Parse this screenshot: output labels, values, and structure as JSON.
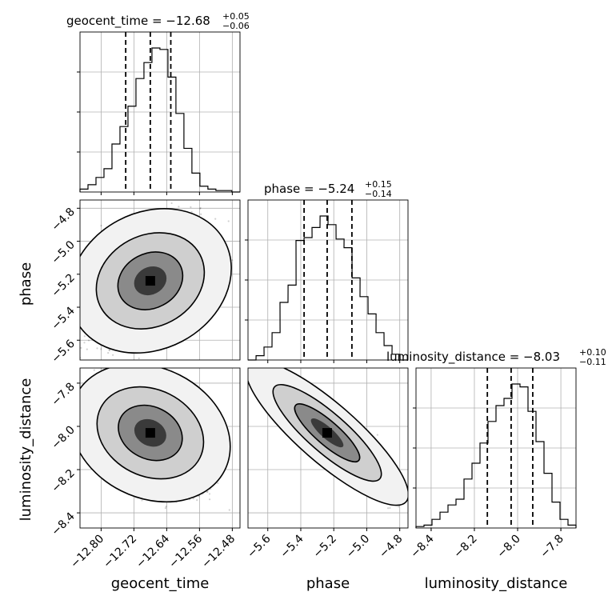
{
  "chart_data": {
    "type": "corner",
    "parameters": [
      {
        "name": "geocent_time",
        "title": {
          "prefix": "geocent_time = −12.68",
          "sup": "+0.05",
          "sub": "−0.06"
        },
        "range": [
          -12.8515,
          -12.4612
        ],
        "ticks": [
          -12.8,
          -12.72,
          -12.64,
          -12.56,
          -12.48
        ],
        "tick_labels": [
          "−12.80",
          "−12.72",
          "−12.64",
          "−12.56",
          "−12.48"
        ],
        "quantiles": [
          -12.74,
          -12.68,
          -12.63
        ],
        "hist_bins": [
          [
            -12.8515,
            2
          ],
          [
            -12.832,
            5
          ],
          [
            -12.8125,
            10
          ],
          [
            -12.793,
            16
          ],
          [
            -12.7735,
            33
          ],
          [
            -12.754,
            45
          ],
          [
            -12.7345,
            59
          ],
          [
            -12.715,
            78
          ],
          [
            -12.6955,
            89
          ],
          [
            -12.676,
            99
          ],
          [
            -12.6565,
            98
          ],
          [
            -12.637,
            79
          ],
          [
            -12.6175,
            54
          ],
          [
            -12.598,
            30
          ],
          [
            -12.5785,
            13
          ],
          [
            -12.559,
            4
          ],
          [
            -12.5395,
            2
          ],
          [
            -12.52,
            1
          ],
          [
            -12.5005,
            1
          ],
          [
            -12.481,
            0
          ]
        ]
      },
      {
        "name": "phase",
        "title": {
          "prefix": "phase = −5.24",
          "sup": "+0.15",
          "sub": "−0.14"
        },
        "range": [
          -5.72,
          -4.75
        ],
        "ticks": [
          -5.6,
          -5.4,
          -5.2,
          -5.0,
          -4.8
        ],
        "tick_labels": [
          "−5.6",
          "−5.4",
          "−5.2",
          "−5.0",
          "−4.8"
        ],
        "y_ticks": [
          -4.8,
          -5.0,
          -5.2,
          -5.4,
          -5.6
        ],
        "y_tick_labels": [
          "−4.8",
          "−5.0",
          "−5.2",
          "−5.4",
          "−5.6"
        ],
        "quantiles": [
          -5.38,
          -5.24,
          -5.09
        ],
        "hist_bins": [
          [
            -5.72,
            0
          ],
          [
            -5.671,
            3
          ],
          [
            -5.623,
            9
          ],
          [
            -5.574,
            19
          ],
          [
            -5.526,
            40
          ],
          [
            -5.477,
            52
          ],
          [
            -5.429,
            83
          ],
          [
            -5.38,
            85
          ],
          [
            -5.332,
            92
          ],
          [
            -5.283,
            100
          ],
          [
            -5.235,
            94
          ],
          [
            -5.186,
            84
          ],
          [
            -5.138,
            78
          ],
          [
            -5.089,
            57
          ],
          [
            -5.041,
            44
          ],
          [
            -4.992,
            32
          ],
          [
            -4.944,
            19
          ],
          [
            -4.895,
            10
          ],
          [
            -4.847,
            4
          ],
          [
            -4.798,
            0
          ]
        ]
      },
      {
        "name": "luminosity_distance",
        "title": {
          "prefix": "luminosity_distance = −8.03",
          "sup": "+0.10",
          "sub": "−0.11"
        },
        "range": [
          -8.47,
          -7.73
        ],
        "ticks": [
          -8.4,
          -8.2,
          -8.0,
          -7.8
        ],
        "tick_labels": [
          "−8.4",
          "−8.2",
          "−8.0",
          "−7.8"
        ],
        "y_ticks": [
          -7.8,
          -8.0,
          -8.2,
          -8.4
        ],
        "y_tick_labels": [
          "−7.8",
          "−8.0",
          "−8.2",
          "−8.4"
        ],
        "quantiles": [
          -8.14,
          -8.03,
          -7.93
        ],
        "hist_bins": [
          [
            -8.47,
            1
          ],
          [
            -8.433,
            2
          ],
          [
            -8.396,
            6
          ],
          [
            -8.359,
            11
          ],
          [
            -8.322,
            16
          ],
          [
            -8.285,
            20
          ],
          [
            -8.248,
            34
          ],
          [
            -8.211,
            45
          ],
          [
            -8.174,
            59
          ],
          [
            -8.137,
            74
          ],
          [
            -8.1,
            85
          ],
          [
            -8.063,
            90
          ],
          [
            -8.026,
            100
          ],
          [
            -7.989,
            98
          ],
          [
            -7.952,
            81
          ],
          [
            -7.915,
            60
          ],
          [
            -7.878,
            38
          ],
          [
            -7.841,
            18
          ],
          [
            -7.804,
            6
          ],
          [
            -7.767,
            2
          ]
        ]
      }
    ],
    "axis_labels": [
      "geocent_time",
      "phase",
      "luminosity_distance"
    ],
    "grid": true,
    "density_levels": 3
  }
}
